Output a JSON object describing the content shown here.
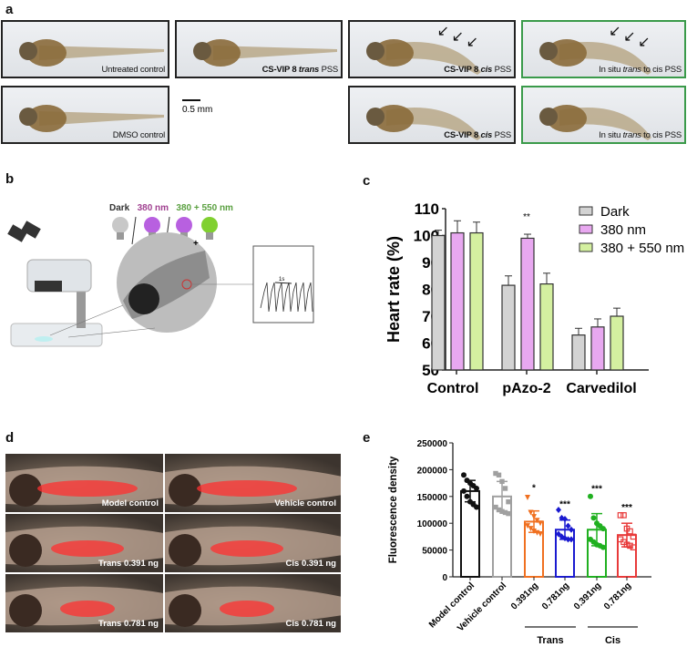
{
  "panel_labels": {
    "a": "a",
    "b": "b",
    "c": "c",
    "d": "d",
    "e": "e"
  },
  "panel_a": {
    "images": [
      {
        "caption_pre": "",
        "caption_bold": "",
        "caption_italic": "",
        "caption_post": "Untreated control",
        "frame": "black",
        "arrows": false
      },
      {
        "caption_pre": "",
        "caption_bold": "CS-VIP 8 ",
        "caption_italic": "trans",
        "caption_post": " PSS",
        "frame": "black",
        "arrows": false
      },
      {
        "caption_pre": "",
        "caption_bold": "CS-VIP 8 ",
        "caption_italic": "cis",
        "caption_post": " PSS",
        "frame": "black",
        "arrows": true
      },
      {
        "caption_pre": "In situ ",
        "caption_bold": "",
        "caption_italic": "trans",
        "caption_post": " to cis PSS",
        "frame": "green",
        "arrows": true
      },
      {
        "caption_pre": "",
        "caption_bold": "",
        "caption_italic": "",
        "caption_post": "DMSO control",
        "frame": "black",
        "arrows": false
      },
      {
        "caption_pre": "",
        "caption_bold": "CS-VIP 8 ",
        "caption_italic": "cis",
        "caption_post": " PSS",
        "frame": "black",
        "arrows": false
      },
      {
        "caption_pre": "In situ ",
        "caption_bold": "",
        "caption_italic": "trans",
        "caption_post": " to cis PSS",
        "frame": "green",
        "arrows": false
      }
    ],
    "scale_bar": "0.5 mm",
    "frame_colors": {
      "black": "#222222",
      "green": "#3a9a4a"
    }
  },
  "panel_b": {
    "conditions": [
      {
        "label": "Dark",
        "color": "#333333"
      },
      {
        "label": "380 nm",
        "color": "#a04090"
      },
      {
        "label": "380 + 550 nm",
        "color": "#5aa040"
      }
    ],
    "plus": "+",
    "trace_label": "1s"
  },
  "chart_data": [
    {
      "type": "bar",
      "ylabel": "Heart rate (%)",
      "ylim": [
        50,
        110
      ],
      "yticks": [
        50,
        60,
        70,
        80,
        90,
        100,
        110
      ],
      "categories": [
        "Control",
        "pAzo-2",
        "Carvedilol"
      ],
      "legend_position": "top-right",
      "series": [
        {
          "name": "Dark",
          "color": "#d3d3d3",
          "values": [
            100,
            81.5,
            63
          ],
          "errors": [
            2,
            3.5,
            2.5
          ]
        },
        {
          "name": "380 nm",
          "color": "#e8a8f0",
          "values": [
            101,
            99,
            66
          ],
          "errors": [
            4.5,
            1.5,
            3
          ]
        },
        {
          "name": "380 + 550 nm",
          "color": "#d4f0a0",
          "values": [
            101,
            82,
            70
          ],
          "errors": [
            4,
            4,
            3
          ]
        }
      ],
      "annotations": [
        {
          "category": "pAzo-2",
          "text": "**"
        }
      ]
    },
    {
      "type": "bar",
      "ylabel": "Fluorescence density",
      "ylim": [
        0,
        250000
      ],
      "yticks": [
        0,
        50000,
        100000,
        150000,
        200000,
        250000
      ],
      "categories": [
        "Model control",
        "Vehicle control",
        "0.391ng",
        "0.781ng",
        "0.391ng",
        "0.781ng"
      ],
      "groups": [
        {
          "label": "Trans",
          "categories": [
            2,
            3
          ]
        },
        {
          "label": "Cis",
          "categories": [
            4,
            5
          ]
        }
      ],
      "values": [
        160000,
        150000,
        103000,
        88000,
        88000,
        78000
      ],
      "errors": [
        20000,
        28000,
        20000,
        18000,
        30000,
        22000
      ],
      "colors": [
        "#111111",
        "#a0a0a0",
        "#f07020",
        "#1a1ad0",
        "#20b020",
        "#e83a3a"
      ],
      "markers": [
        "circle",
        "square",
        "triangle-down",
        "diamond",
        "circle",
        "square-open"
      ],
      "significance": [
        "",
        "",
        "*",
        "***",
        "***",
        "***"
      ],
      "points": [
        [
          190000,
          180000,
          175000,
          170000,
          165000,
          160000,
          150000,
          140000,
          135000,
          130000
        ],
        [
          193000,
          190000,
          178000,
          165000,
          140000,
          130000,
          125000,
          122000,
          120000,
          118000
        ],
        [
          148000,
          120000,
          112000,
          105000,
          100000,
          95000,
          90000,
          85000,
          82000,
          80000
        ],
        [
          125000,
          110000,
          108000,
          95000,
          88000,
          80000,
          75000,
          72000,
          70000,
          70000
        ],
        [
          150000,
          110000,
          100000,
          95000,
          90000,
          70000,
          65000,
          60000,
          58000,
          55000
        ],
        [
          115000,
          115000,
          90000,
          85000,
          75000,
          70000,
          65000,
          60000,
          58000,
          55000
        ]
      ]
    }
  ],
  "panel_d": {
    "images": [
      {
        "caption": "Model control"
      },
      {
        "caption": "Vehicle control"
      },
      {
        "caption": "Trans 0.391 ng"
      },
      {
        "caption": "Cis 0.391 ng"
      },
      {
        "caption": "Trans 0.781 ng"
      },
      {
        "caption": "Cis 0.781 ng"
      }
    ]
  }
}
